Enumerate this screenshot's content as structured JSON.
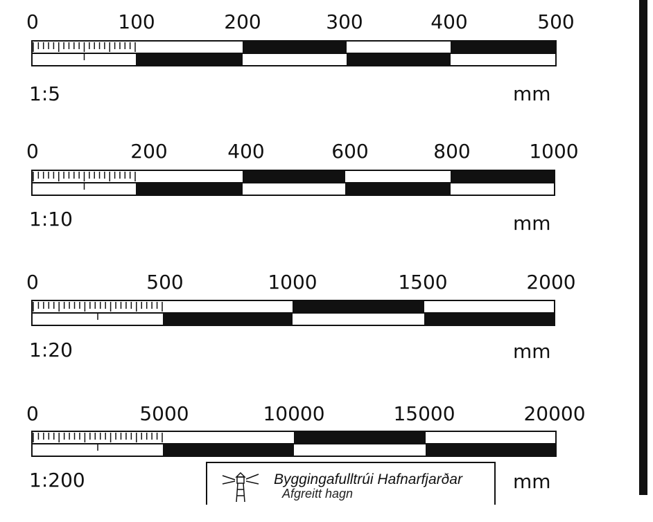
{
  "scales": [
    {
      "ticks": [
        "0",
        "100",
        "200",
        "300",
        "400",
        "500"
      ],
      "ratio": "1:5",
      "unit": "mm"
    },
    {
      "ticks": [
        "0",
        "200",
        "400",
        "600",
        "800",
        "1000"
      ],
      "ratio": "1:10",
      "unit": "mm"
    },
    {
      "ticks": [
        "0",
        "500",
        "1000",
        "1500",
        "2000"
      ],
      "ratio": "1:20",
      "unit": "mm"
    },
    {
      "ticks": [
        "0",
        "5000",
        "10000",
        "15000",
        "20000"
      ],
      "ratio": "1:200",
      "unit": "mm"
    }
  ],
  "stamp": {
    "title": "Byggingafulltrúi Hafnarfjarðar",
    "subtitle": "Afgreitt hagn",
    "logo_icon": "lighthouse-icon"
  }
}
